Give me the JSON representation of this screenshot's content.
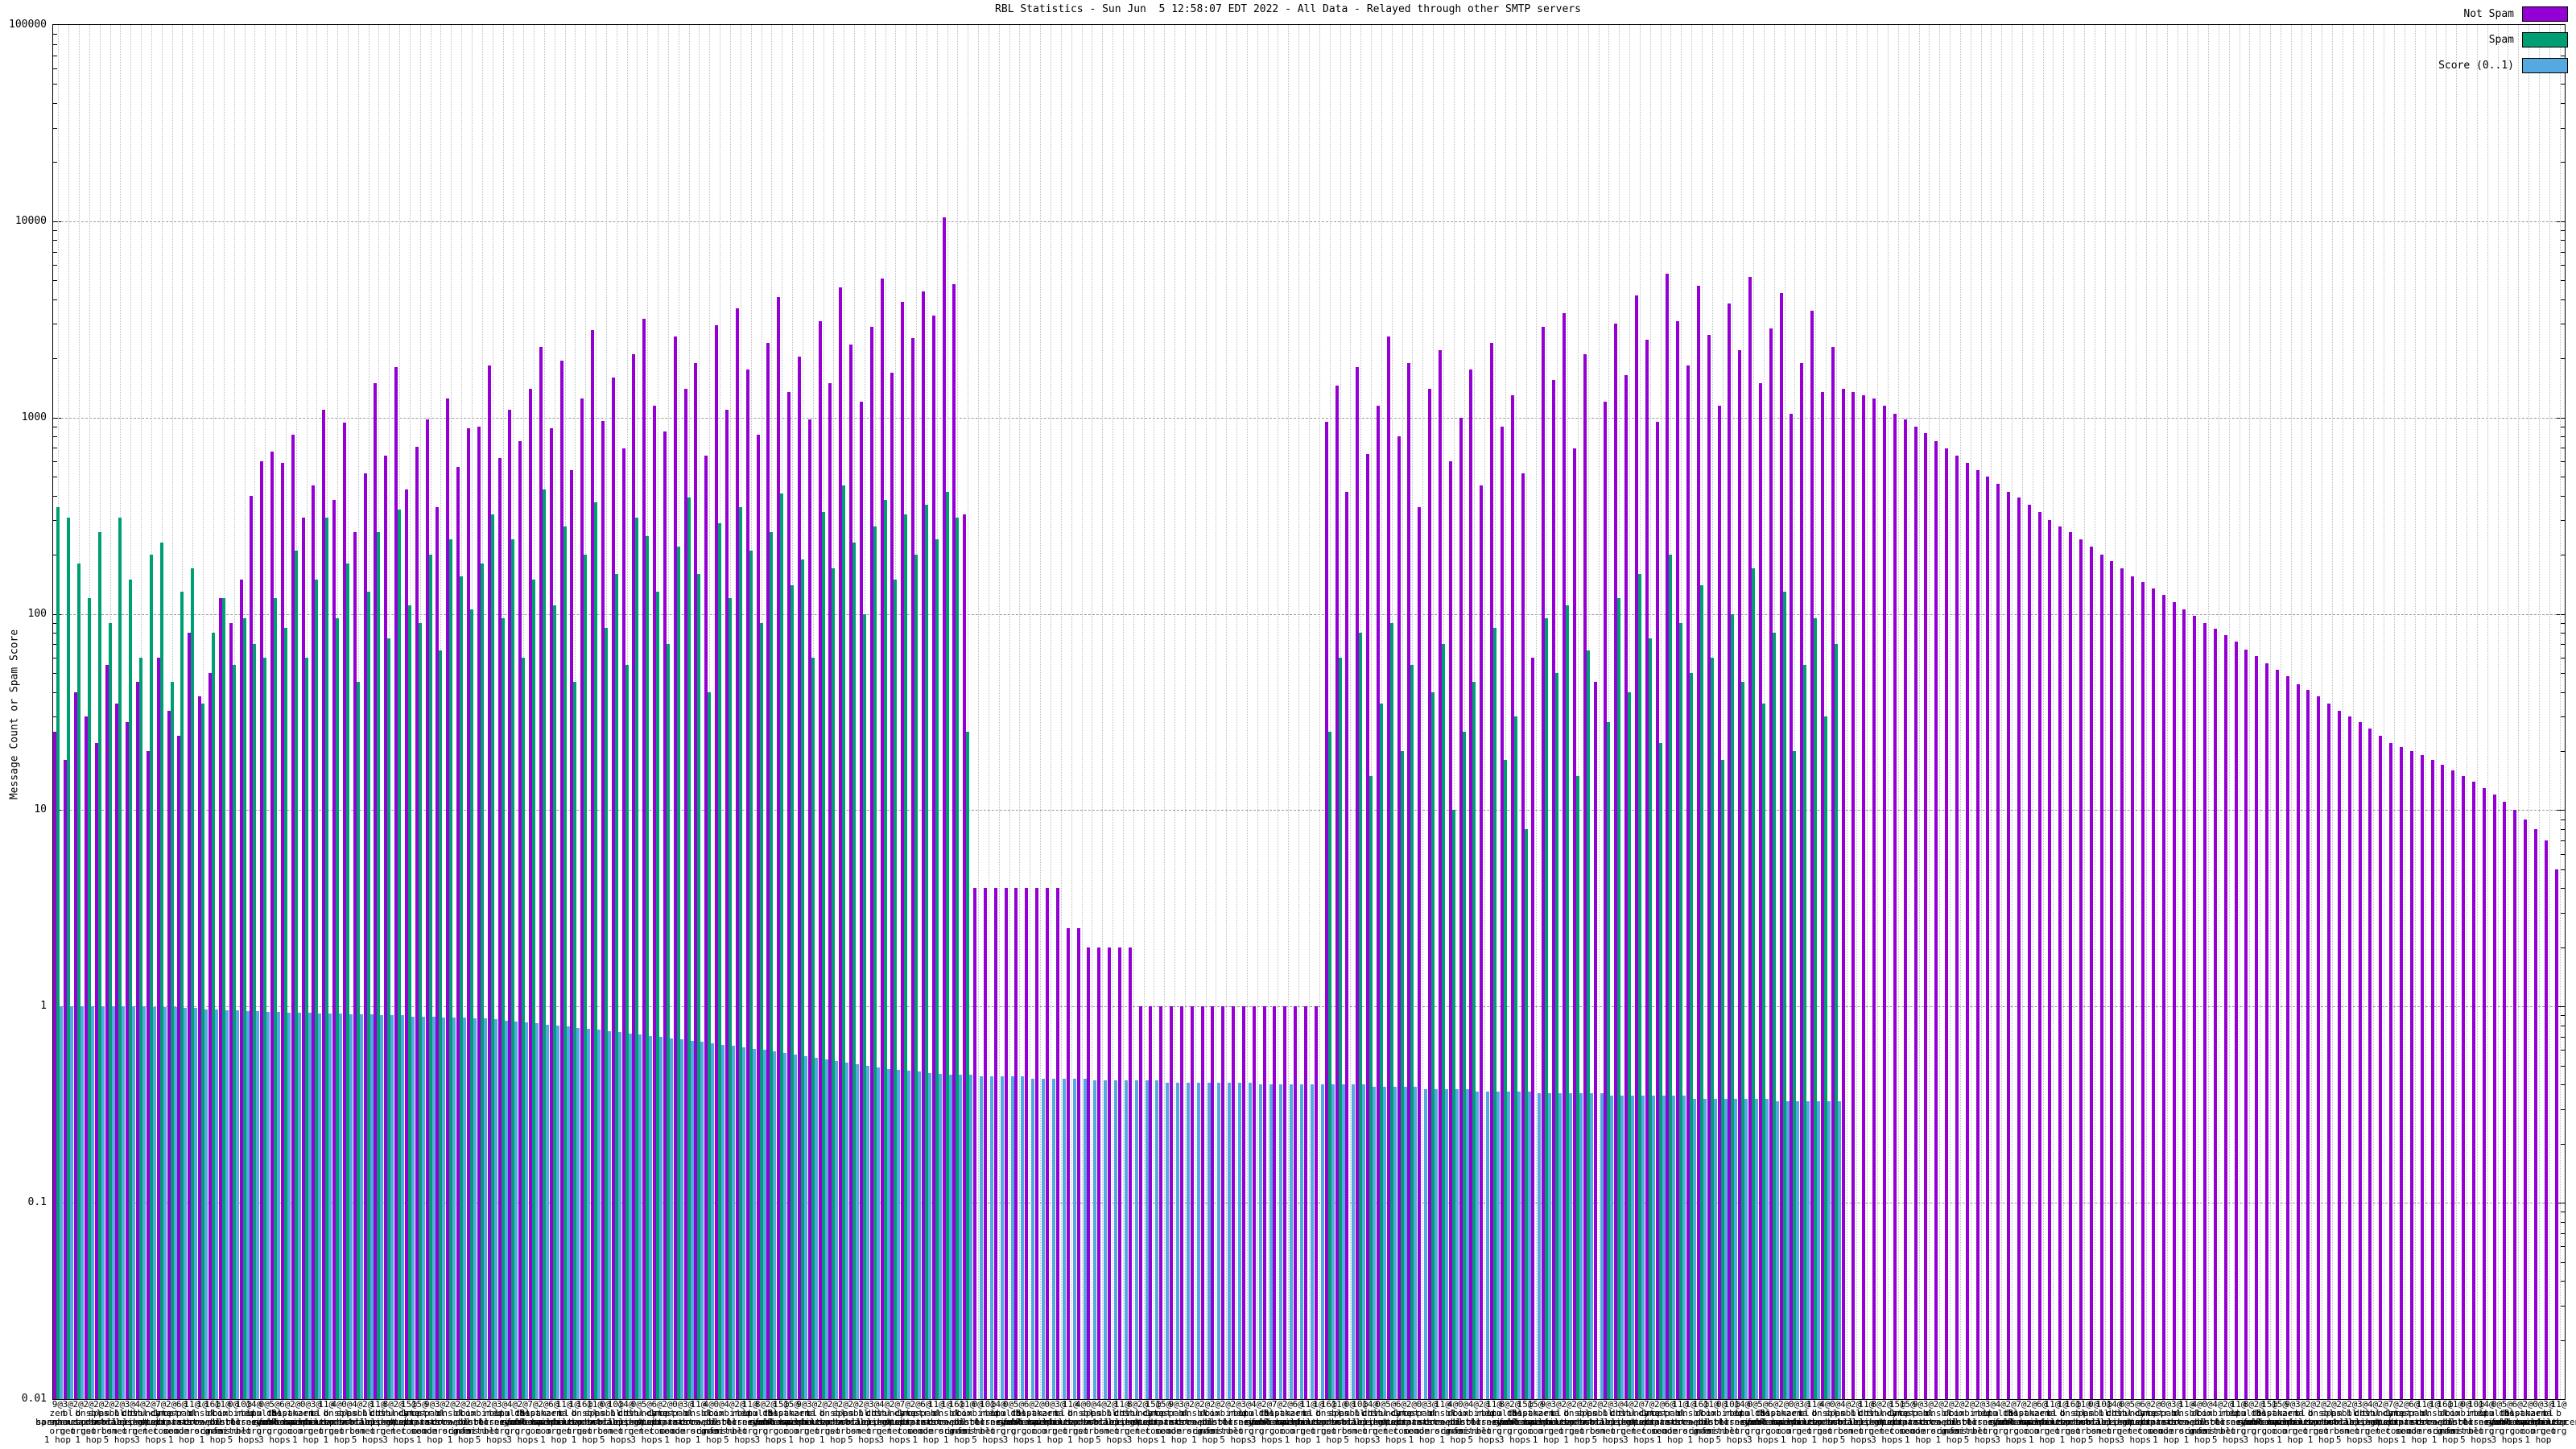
{
  "title": "RBL Statistics - Sun Jun  5 12:58:07 EDT 2022 - All Data - Relayed through other SMTP servers",
  "y_axis_label": "Message Count or Spam Score",
  "legend": [
    {
      "label": "Not Spam",
      "color": "#9400d3"
    },
    {
      "label": "Spam",
      "color": "#009e73"
    },
    {
      "label": "Score (0..1)",
      "color": "#56a9e0"
    }
  ],
  "colors": {
    "not_spam": "#9400d3",
    "spam": "#009e73",
    "score": "#56a9e0",
    "grid_major": "#9a9a9a",
    "grid_minor": "#bdbdbd"
  },
  "chart_data": {
    "type": "bar",
    "title": "RBL Statistics - Sun Jun  5 12:58:07 EDT 2022 - All Data - Relayed through other SMTP servers",
    "xlabel": "",
    "ylabel": "Message Count or Spam Score",
    "yscale": "log",
    "ylim": [
      0.01,
      100000
    ],
    "y_ticks": [
      100000,
      10000,
      1000,
      100,
      10,
      1,
      0.1,
      0.01
    ],
    "grid": true,
    "legend_position": "top-right",
    "series_note": "three bars per RBL test: Not Spam count, Spam count, Score(0..1); 0 means bar absent",
    "series": [
      {
        "name": "Not Spam",
        "values": [
          25,
          18,
          40,
          30,
          22,
          55,
          35,
          28,
          45,
          20,
          60,
          32,
          24,
          80,
          38,
          50,
          120,
          90,
          150,
          400,
          600,
          670,
          590,
          820,
          310,
          450,
          1100,
          380,
          940,
          260,
          520,
          1500,
          640,
          1800,
          430,
          710,
          980,
          350,
          1250,
          560,
          880,
          900,
          1850,
          620,
          1100,
          760,
          1400,
          2300,
          880,
          1950,
          540,
          1250,
          2800,
          960,
          1600,
          700,
          2100,
          3200,
          1150,
          850,
          2600,
          1400,
          1900,
          640,
          2950,
          1100,
          3600,
          1750,
          820,
          2400,
          4100,
          1350,
          2050,
          980,
          3100,
          1500,
          4600,
          2350,
          1200,
          2900,
          5100,
          1700,
          3900,
          2550,
          4400,
          3300,
          10500,
          4800,
          320,
          4,
          4,
          4,
          4,
          4,
          4,
          4,
          4,
          4,
          2.5,
          2.5,
          2,
          2,
          2,
          2,
          2,
          1,
          1,
          1,
          1,
          1,
          1,
          1,
          1,
          1,
          1,
          1,
          1,
          1,
          1,
          1,
          1,
          1,
          1,
          950,
          1450,
          420,
          1800,
          650,
          1150,
          2600,
          800,
          1900,
          350,
          1400,
          2200,
          600,
          1000,
          1750,
          450,
          2400,
          900,
          1300,
          520,
          60,
          2900,
          1550,
          3400,
          700,
          2100,
          45,
          1200,
          3000,
          1650,
          4200,
          2500,
          950,
          5400,
          3100,
          1850,
          4700,
          2650,
          1150,
          3800,
          2200,
          5200,
          1500,
          2850,
          4300,
          1050,
          1900,
          3500,
          1350,
          2300,
          1400,
          1350,
          1300,
          1250,
          1150,
          1050,
          980,
          900,
          830,
          760,
          700,
          640,
          590,
          540,
          500,
          460,
          420,
          390,
          360,
          330,
          300,
          280,
          260,
          240,
          220,
          200,
          185,
          170,
          155,
          145,
          135,
          125,
          115,
          105,
          98,
          90,
          84,
          78,
          72,
          66,
          61,
          56,
          52,
          48,
          44,
          41,
          38,
          35,
          32,
          30,
          28,
          26,
          24,
          22,
          21,
          20,
          19,
          18,
          17,
          16,
          15,
          14,
          13,
          12,
          11,
          10,
          9,
          8,
          7,
          5
        ]
      },
      {
        "name": "Spam",
        "values": [
          350,
          310,
          180,
          120,
          260,
          90,
          310,
          150,
          60,
          200,
          230,
          45,
          130,
          170,
          35,
          80,
          120,
          55,
          95,
          70,
          60,
          120,
          85,
          210,
          60,
          150,
          310,
          95,
          180,
          45,
          130,
          260,
          75,
          340,
          110,
          90,
          200,
          65,
          240,
          155,
          105,
          180,
          320,
          95,
          240,
          60,
          150,
          430,
          110,
          280,
          45,
          200,
          370,
          85,
          160,
          55,
          310,
          250,
          130,
          70,
          220,
          390,
          160,
          40,
          290,
          120,
          350,
          210,
          90,
          260,
          410,
          140,
          190,
          60,
          330,
          170,
          450,
          230,
          100,
          280,
          380,
          150,
          320,
          200,
          360,
          240,
          420,
          310,
          25,
          0,
          0,
          0,
          0,
          0,
          0,
          0,
          0,
          0,
          0,
          0,
          0,
          0,
          0,
          0,
          0,
          0,
          0,
          0,
          0,
          0,
          0,
          0,
          0,
          0,
          0,
          0,
          0,
          0,
          0,
          0,
          0,
          0,
          0,
          25,
          60,
          0,
          80,
          15,
          35,
          90,
          20,
          55,
          0,
          40,
          70,
          10,
          25,
          45,
          0,
          85,
          18,
          30,
          8,
          0,
          95,
          50,
          110,
          15,
          65,
          0,
          28,
          120,
          40,
          160,
          75,
          22,
          200,
          90,
          50,
          140,
          60,
          18,
          100,
          45,
          170,
          35,
          80,
          130,
          20,
          55,
          95,
          30,
          70,
          0,
          0,
          0,
          0,
          0,
          0,
          0,
          0,
          0,
          0,
          0,
          0,
          0,
          0,
          0,
          0,
          0,
          0,
          0,
          0,
          0,
          0,
          0,
          0,
          0,
          0,
          0,
          0,
          0,
          0,
          0,
          0,
          0,
          0,
          0,
          0,
          0,
          0,
          0,
          0,
          0,
          0,
          0,
          0,
          0,
          0,
          0,
          0,
          0,
          0,
          0,
          0,
          0,
          0,
          0,
          0,
          0,
          0,
          0,
          0,
          0,
          0,
          0,
          0,
          0,
          0,
          0,
          0,
          0,
          0
        ]
      },
      {
        "name": "Score (0..1)",
        "values": [
          1,
          1,
          1,
          1,
          1,
          1,
          1,
          1,
          1,
          0.99,
          0.99,
          0.99,
          0.98,
          0.98,
          0.97,
          0.97,
          0.96,
          0.96,
          0.95,
          0.95,
          0.94,
          0.94,
          0.93,
          0.93,
          0.93,
          0.92,
          0.92,
          0.92,
          0.91,
          0.91,
          0.91,
          0.9,
          0.9,
          0.9,
          0.89,
          0.89,
          0.89,
          0.88,
          0.88,
          0.88,
          0.87,
          0.87,
          0.86,
          0.85,
          0.84,
          0.83,
          0.82,
          0.81,
          0.8,
          0.79,
          0.78,
          0.77,
          0.76,
          0.75,
          0.74,
          0.73,
          0.72,
          0.71,
          0.7,
          0.69,
          0.68,
          0.67,
          0.66,
          0.65,
          0.64,
          0.63,
          0.62,
          0.61,
          0.6,
          0.59,
          0.58,
          0.57,
          0.56,
          0.55,
          0.54,
          0.53,
          0.52,
          0.51,
          0.5,
          0.49,
          0.48,
          0.475,
          0.47,
          0.465,
          0.46,
          0.455,
          0.45,
          0.45,
          0.45,
          0.44,
          0.44,
          0.44,
          0.44,
          0.44,
          0.43,
          0.43,
          0.43,
          0.43,
          0.43,
          0.43,
          0.42,
          0.42,
          0.42,
          0.42,
          0.42,
          0.42,
          0.42,
          0.41,
          0.41,
          0.41,
          0.41,
          0.41,
          0.41,
          0.41,
          0.41,
          0.41,
          0.4,
          0.4,
          0.4,
          0.4,
          0.4,
          0.4,
          0.4,
          0.4,
          0.4,
          0.4,
          0.4,
          0.39,
          0.39,
          0.39,
          0.39,
          0.39,
          0.38,
          0.38,
          0.38,
          0.38,
          0.38,
          0.37,
          0.37,
          0.37,
          0.37,
          0.37,
          0.37,
          0.36,
          0.36,
          0.36,
          0.36,
          0.36,
          0.36,
          0.36,
          0.35,
          0.35,
          0.35,
          0.35,
          0.35,
          0.35,
          0.35,
          0.35,
          0.34,
          0.34,
          0.34,
          0.34,
          0.34,
          0.34,
          0.34,
          0.34,
          0.33,
          0.33,
          0.33,
          0.33,
          0.33,
          0.33,
          0.33,
          0,
          0,
          0,
          0,
          0,
          0,
          0,
          0,
          0,
          0,
          0,
          0,
          0,
          0,
          0,
          0,
          0,
          0,
          0,
          0,
          0,
          0,
          0,
          0,
          0,
          0,
          0,
          0,
          0,
          0,
          0,
          0,
          0,
          0,
          0,
          0,
          0,
          0,
          0,
          0,
          0,
          0,
          0,
          0,
          0,
          0,
          0,
          0,
          0,
          0,
          0,
          0,
          0,
          0,
          0,
          0,
          0,
          0,
          0,
          0,
          0,
          0,
          0,
          0,
          0,
          0,
          0,
          0,
          0,
          0
        ]
      }
    ],
    "x_labels_note": "per-test RBL hostname labels, heavily overlapping and illegible in source; composed from pools below",
    "x_label_prefix_pool": [
      "9@",
      "3@",
      "2@",
      "2@",
      "2@",
      "2@",
      "2@",
      "3@",
      "4@",
      "2@",
      "7@",
      "2@",
      "6@",
      "11@",
      "1@",
      "16@",
      "11@",
      "0@",
      "10@",
      "14@",
      "0@",
      "5@",
      "6@",
      "2@",
      "0@",
      "3@",
      "11@",
      "4@",
      "0@",
      "4@",
      "2@",
      "11@",
      "8@",
      "2@",
      "15@",
      "15@"
    ],
    "x_label_host_pool": [
      [
        "zen",
        "spamhaus",
        "org"
      ],
      [
        "bl",
        "spamcop",
        "net"
      ],
      [
        "b",
        "barracudacentral",
        "org"
      ],
      [
        "dnsbl",
        "sorbs",
        "net"
      ],
      [
        "spam",
        "dnsbl",
        "sorbs"
      ],
      [
        "psbl",
        "surriel",
        "com"
      ],
      [
        "bl",
        "mailspike",
        "net"
      ],
      [
        "cbl",
        "abuseat",
        "org"
      ],
      [
        "dnsbl-1",
        "uceprotect",
        "net"
      ],
      [
        "truncate",
        "gbudb",
        "net"
      ],
      [
        "dyna",
        "spamrats",
        "com"
      ],
      [
        "noptr",
        "spamrats",
        "com"
      ],
      [
        "spam",
        "spamrats",
        "com"
      ],
      [
        "bl",
        "score",
        "senderscore"
      ],
      [
        "dnsbl",
        "dronebl",
        "org"
      ],
      [
        "db",
        "wpbl",
        "info"
      ],
      [
        "ix",
        "dnsbl",
        "manitu"
      ],
      [
        "combined",
        "rbl",
        "msrbl"
      ],
      [
        "rbl",
        "interserver",
        "net"
      ],
      [
        "opm",
        "tornevall",
        "org"
      ],
      [
        "multi",
        "surbl",
        "org"
      ],
      [
        "dbl",
        "spamhaus",
        "org"
      ],
      [
        "0spam",
        "fusionzero",
        "com"
      ],
      [
        "hostkarma",
        "junkemailfilter",
        "com"
      ]
    ],
    "x_label_hops_pool": [
      "1 hop",
      "2 hops",
      "3 hops",
      "1 hop",
      "7 hops",
      "2 hops",
      "5 hops",
      "1 hop",
      "4 hops",
      "3 hops",
      "1 hop",
      "2 hops"
    ]
  }
}
